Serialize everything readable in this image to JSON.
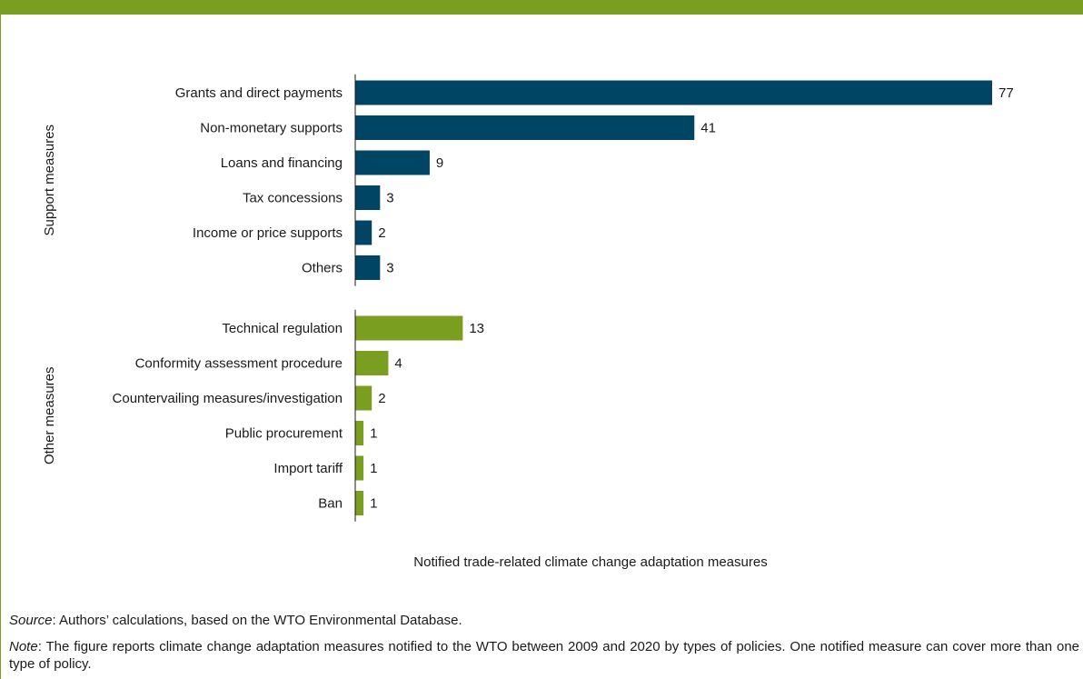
{
  "colors": {
    "header": "#7a9e1f",
    "support": "#004664",
    "other": "#7a9e1f"
  },
  "chart_data": {
    "type": "bar",
    "orientation": "horizontal",
    "xlabel": "Notified trade-related climate change adaptation measures",
    "grid": false,
    "legend": "none",
    "xlim": [
      0,
      77
    ],
    "groups": [
      {
        "name": "Support measures",
        "color": "#004664",
        "categories": [
          "Grants and direct payments",
          "Non-monetary supports",
          "Loans and financing",
          "Tax concessions",
          "Income or price supports",
          "Others"
        ],
        "values": [
          77,
          41,
          9,
          3,
          2,
          3
        ]
      },
      {
        "name": "Other measures",
        "color": "#7a9e1f",
        "categories": [
          "Technical regulation",
          "Conformity assessment procedure",
          "Countervailing measures/investigation",
          "Public procurement",
          "Import tariff",
          "Ban"
        ],
        "values": [
          13,
          4,
          2,
          1,
          1,
          1
        ]
      }
    ]
  },
  "source": {
    "prefix": "Source",
    "text": ": Authors’ calculations, based on the WTO Environmental Database."
  },
  "note": {
    "prefix": "Note",
    "text": ": The figure reports climate change adaptation measures notified to the WTO between 2009 and 2020 by types of policies. One notified measure can cover more than one type of policy."
  }
}
